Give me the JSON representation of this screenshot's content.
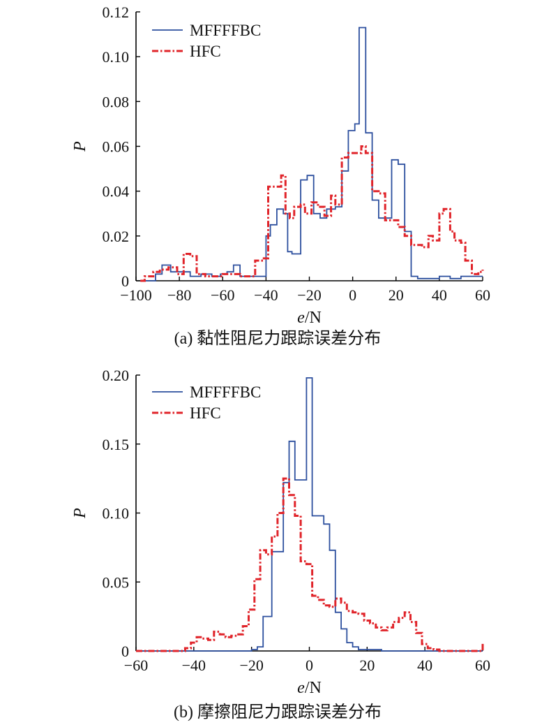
{
  "colors": {
    "mfffbc": "#2c4f9e",
    "hfc": "#e0242a",
    "axis": "#000000"
  },
  "chart_data": [
    {
      "type": "line",
      "id": "a",
      "caption": "(a) 黏性阻尼力跟踪误差分布",
      "xlabel": "e/N",
      "ylabel": "P",
      "xlim": [
        -100,
        60
      ],
      "ylim": [
        0,
        0.12
      ],
      "xticks": [
        "−100",
        "−80",
        "−60",
        "−40",
        "−20",
        "0",
        "20",
        "40",
        "60"
      ],
      "yticks": [
        "0",
        "0.02",
        "0.04",
        "0.06",
        "0.08",
        "0.10",
        "0.12"
      ],
      "legend_position": "top-left",
      "grid": false,
      "series": [
        {
          "name": "MFFFFBC",
          "style": "solid",
          "x": [
            -98,
            -91,
            -88,
            -84,
            -79,
            -75,
            -70,
            -65,
            -61,
            -58,
            -55,
            -52,
            -48,
            -44,
            -40,
            -38,
            -35,
            -32,
            -30,
            -28,
            -24,
            -21,
            -18,
            -15,
            -12,
            -8,
            -5,
            -2,
            1,
            3,
            6,
            9,
            12,
            15,
            18,
            21,
            24,
            27,
            30,
            35,
            40,
            45,
            50,
            55,
            60
          ],
          "y": [
            0,
            0.003,
            0.007,
            0.004,
            0.004,
            0.002,
            0.003,
            0.002,
            0.003,
            0.004,
            0.007,
            0.002,
            0.002,
            0.002,
            0.02,
            0.025,
            0.032,
            0.03,
            0.013,
            0.012,
            0.045,
            0.047,
            0.03,
            0.028,
            0.032,
            0.033,
            0.049,
            0.067,
            0.07,
            0.113,
            0.066,
            0.036,
            0.028,
            0.028,
            0.054,
            0.052,
            0.022,
            0.002,
            0.001,
            0.001,
            0.002,
            0.001,
            0.002,
            0.002,
            0.002
          ]
        },
        {
          "name": "HFC",
          "style": "dashdot",
          "x": [
            -98,
            -96,
            -92,
            -89,
            -85,
            -81,
            -78,
            -75,
            -72,
            -68,
            -64,
            -60,
            -56,
            -52,
            -48,
            -45,
            -41,
            -39,
            -36,
            -33,
            -31,
            -29,
            -27,
            -24,
            -22,
            -19,
            -16,
            -13,
            -10,
            -8,
            -5,
            -2,
            1,
            4,
            6,
            9,
            12,
            15,
            18,
            21,
            24,
            27,
            30,
            32,
            35,
            37,
            40,
            42,
            45,
            47,
            50,
            52,
            55,
            58,
            60
          ],
          "y": [
            0,
            0.002,
            0.004,
            0.005,
            0.006,
            0.003,
            0.012,
            0.011,
            0.003,
            0.002,
            0.002,
            0.003,
            0.003,
            0.002,
            0.002,
            0.009,
            0.01,
            0.042,
            0.042,
            0.047,
            0.03,
            0.028,
            0.033,
            0.034,
            0.03,
            0.035,
            0.033,
            0.029,
            0.038,
            0.034,
            0.055,
            0.057,
            0.057,
            0.06,
            0.057,
            0.04,
            0.039,
            0.027,
            0.027,
            0.024,
            0.02,
            0.016,
            0.016,
            0.015,
            0.02,
            0.018,
            0.03,
            0.032,
            0.022,
            0.018,
            0.017,
            0.009,
            0.003,
            0.004,
            0.005
          ]
        }
      ]
    },
    {
      "type": "line",
      "id": "b",
      "caption": "(b) 摩擦阻尼力跟踪误差分布",
      "xlabel": "e/N",
      "ylabel": "P",
      "xlim": [
        -60,
        60
      ],
      "ylim": [
        0,
        0.2
      ],
      "xticks": [
        "−60",
        "−40",
        "−20",
        "0",
        "20",
        "40",
        "60"
      ],
      "yticks": [
        "0",
        "0.05",
        "0.10",
        "0.15",
        "0.20"
      ],
      "legend_position": "top-left",
      "grid": false,
      "series": [
        {
          "name": "MFFFFBC",
          "style": "solid",
          "x": [
            -60,
            -22,
            -20,
            -18,
            -16,
            -13,
            -11,
            -9,
            -7,
            -5,
            -3,
            -1,
            1,
            3,
            5,
            7,
            9,
            11,
            13,
            15,
            17,
            20,
            25,
            60
          ],
          "y": [
            0,
            0,
            0.001,
            0.003,
            0.025,
            0.072,
            0.072,
            0.122,
            0.152,
            0.124,
            0.124,
            0.198,
            0.098,
            0.098,
            0.092,
            0.073,
            0.028,
            0.016,
            0.006,
            0.003,
            0.001,
            0.001,
            0,
            0
          ]
        },
        {
          "name": "HFC",
          "style": "dashdot",
          "x": [
            -60,
            -45,
            -43,
            -41,
            -39,
            -37,
            -35,
            -33,
            -31,
            -29,
            -27,
            -25,
            -23,
            -21,
            -19,
            -17,
            -15,
            -13,
            -11,
            -9,
            -7,
            -5,
            -3,
            -1,
            1,
            3,
            5,
            7,
            9,
            11,
            13,
            15,
            17,
            19,
            21,
            23,
            25,
            27,
            29,
            31,
            33,
            35,
            37,
            39,
            41,
            43,
            45,
            50,
            55,
            60
          ],
          "y": [
            0,
            0,
            0.002,
            0.006,
            0.01,
            0.009,
            0.008,
            0.014,
            0.012,
            0.01,
            0.011,
            0.012,
            0.018,
            0.03,
            0.052,
            0.073,
            0.07,
            0.083,
            0.1,
            0.125,
            0.113,
            0.098,
            0.065,
            0.063,
            0.04,
            0.037,
            0.033,
            0.032,
            0.038,
            0.035,
            0.029,
            0.028,
            0.027,
            0.022,
            0.02,
            0.017,
            0.015,
            0.017,
            0.021,
            0.024,
            0.028,
            0.021,
            0.013,
            0.005,
            0.002,
            0.001,
            0,
            0,
            0,
            0.006
          ]
        }
      ]
    }
  ]
}
